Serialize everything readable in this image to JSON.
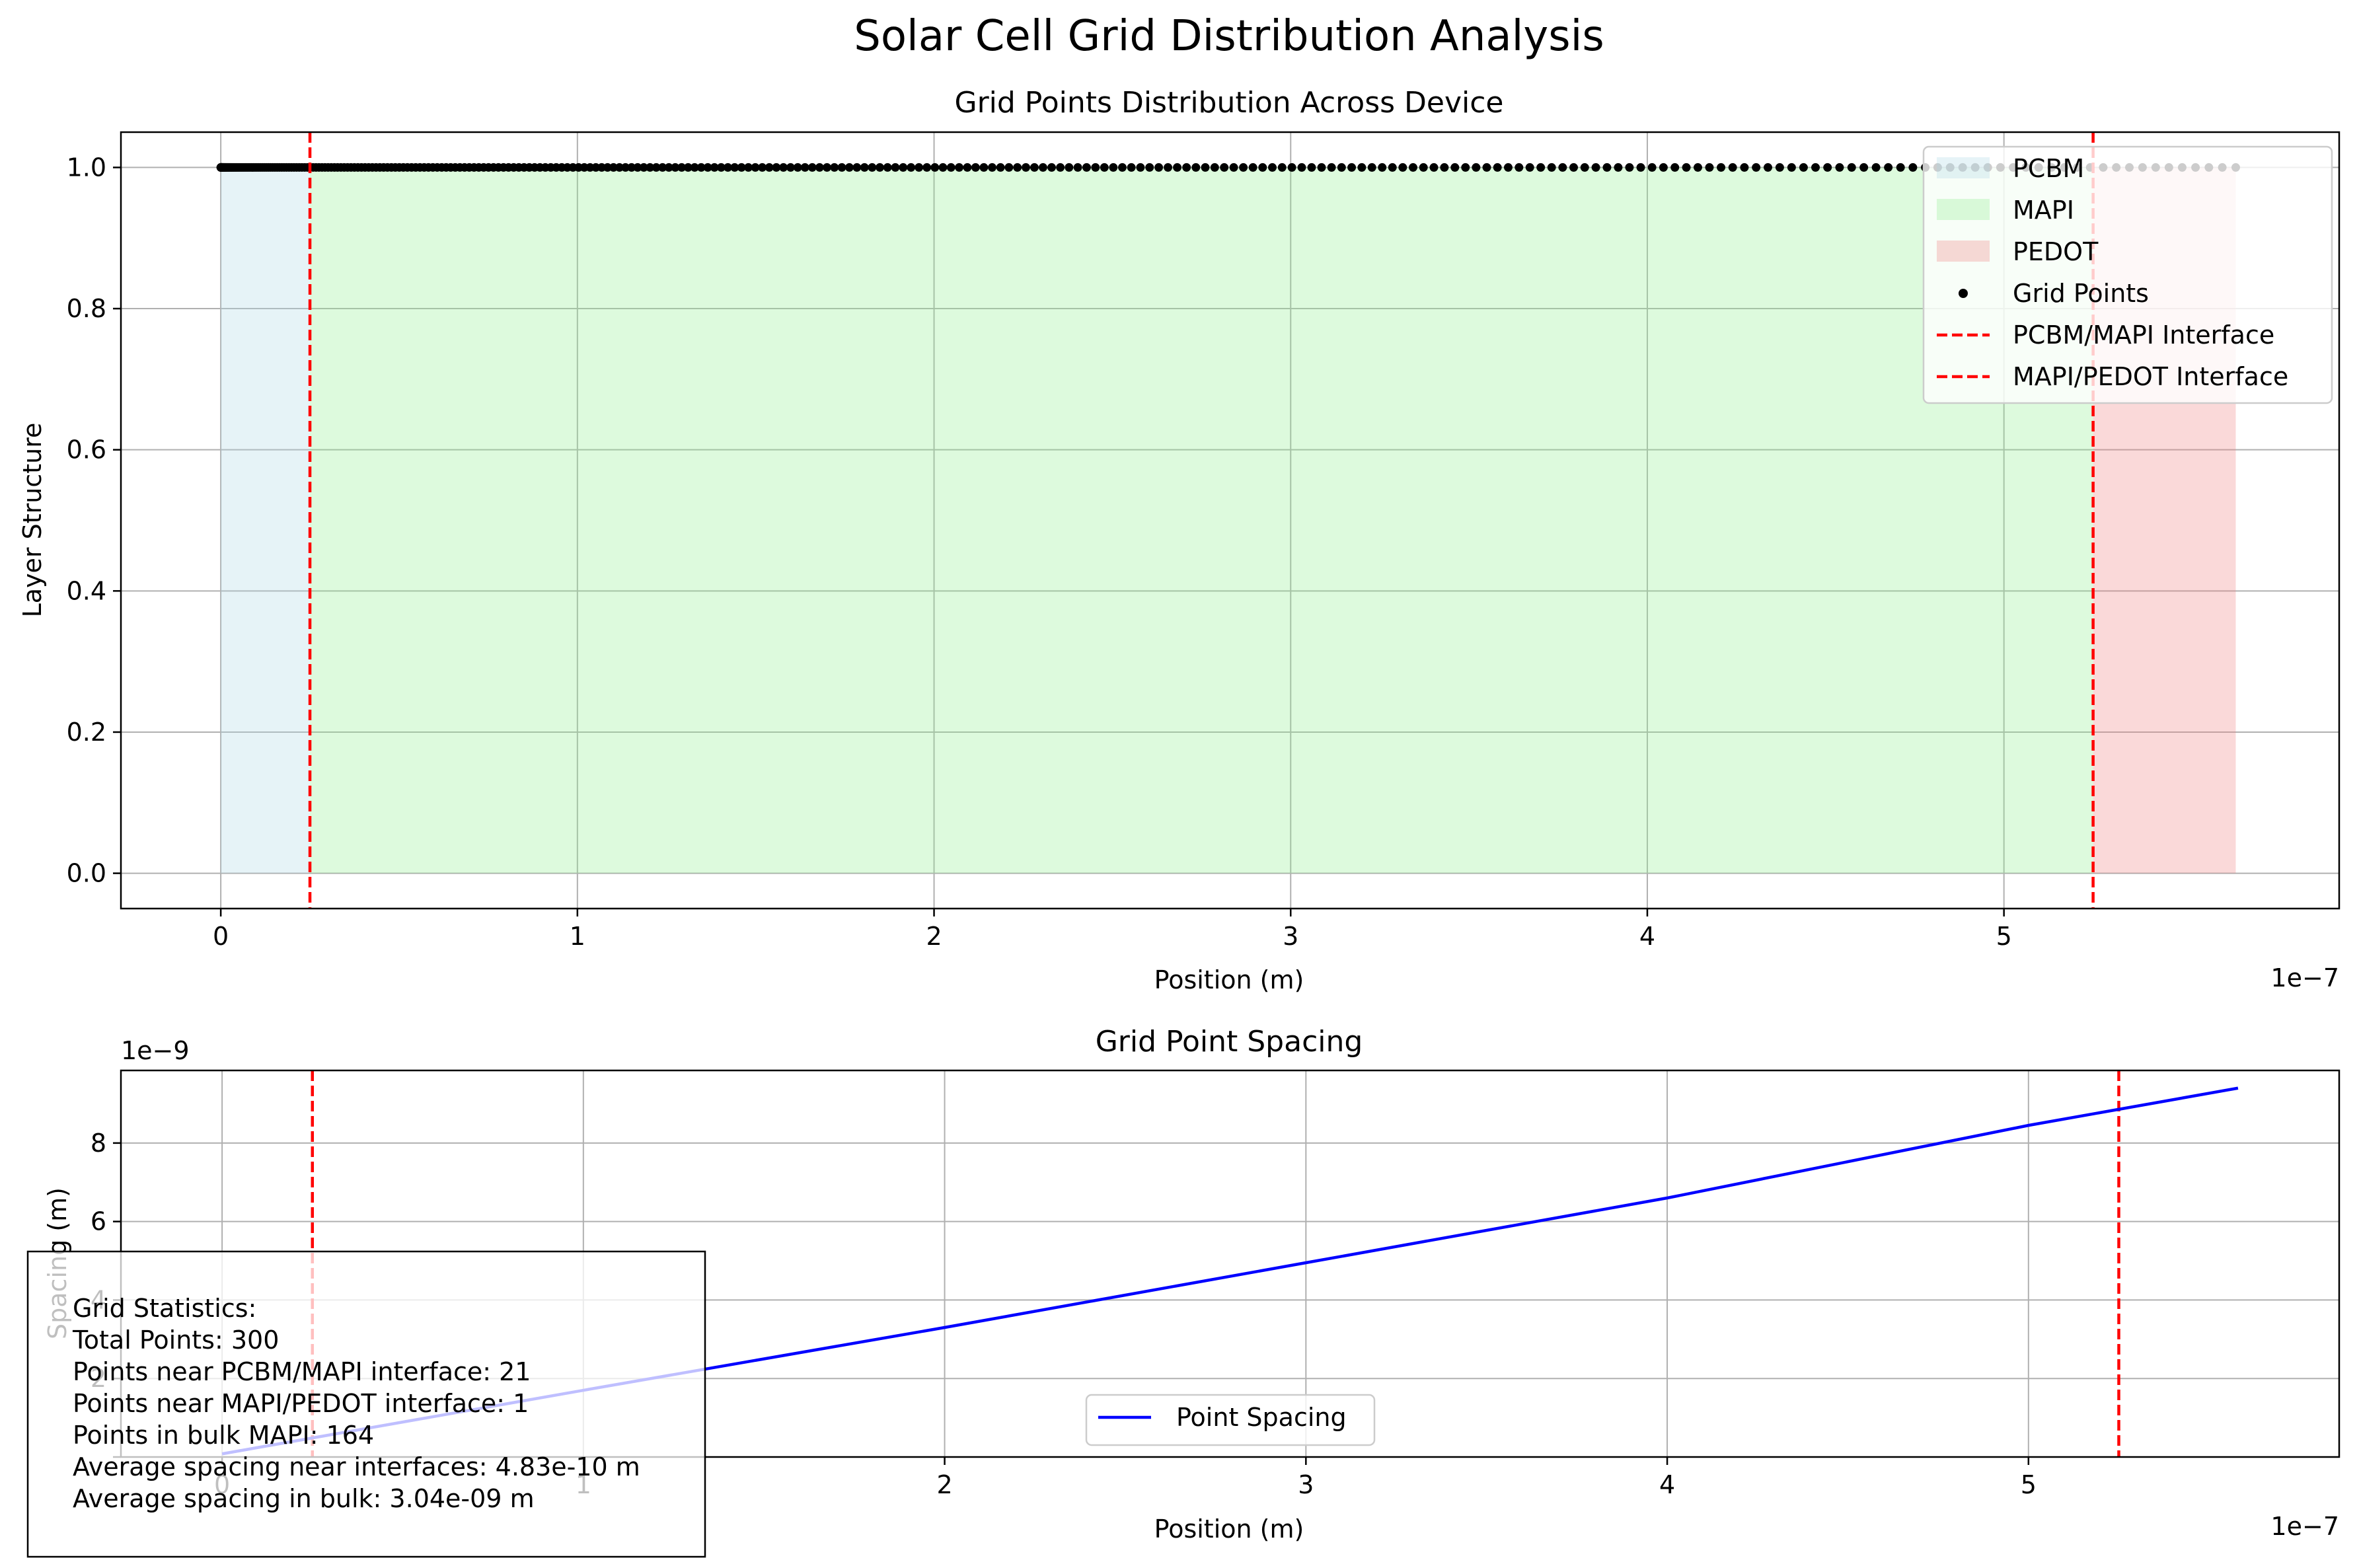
{
  "figure_title": "Solar Cell Grid Distribution Analysis",
  "chart_data": [
    {
      "type": "scatter",
      "title": "Grid Points Distribution Across Device",
      "xlabel": "Position (m)",
      "ylabel": "Layer Structure",
      "x_offset_text": "1e−7",
      "xlim": [
        -0.28,
        5.94
      ],
      "ylim": [
        -0.05,
        1.05
      ],
      "x_ticks": [
        0,
        1,
        2,
        3,
        4,
        5
      ],
      "x_tick_labels": [
        "0",
        "1",
        "2",
        "3",
        "4",
        "5"
      ],
      "y_ticks": [
        0.0,
        0.2,
        0.4,
        0.6,
        0.8,
        1.0
      ],
      "y_tick_labels": [
        "0.0",
        "0.2",
        "0.4",
        "0.6",
        "0.8",
        "1.0"
      ],
      "grid": true,
      "legend_position": "top-right",
      "regions": [
        {
          "name": "PCBM",
          "x_start": 0,
          "x_end": 0.25,
          "y_top": 1.0,
          "color": "#add8e6"
        },
        {
          "name": "MAPI",
          "x_start": 0.25,
          "x_end": 5.25,
          "y_top": 1.0,
          "color": "#90ee90"
        },
        {
          "name": "PEDOT",
          "x_start": 5.25,
          "x_end": 5.65,
          "y_top": 1.0,
          "color": "#f08080"
        }
      ],
      "grid_points": {
        "name": "Grid Points",
        "y": 1.0,
        "count": 300,
        "x_start": 0,
        "x_end": 5.65,
        "color": "#000000"
      },
      "interfaces": [
        {
          "name": "PCBM/MAPI Interface",
          "x": 0.25,
          "color": "#ff0000"
        },
        {
          "name": "MAPI/PEDOT Interface",
          "x": 5.25,
          "color": "#ff0000"
        }
      ]
    },
    {
      "type": "line",
      "title": "Grid Point Spacing",
      "xlabel": "Position (m)",
      "ylabel": "Spacing (m)",
      "x_offset_text": "1e−7",
      "y_offset_text": "1e−9",
      "xlim": [
        -0.28,
        5.86
      ],
      "ylim": [
        0.0,
        9.85
      ],
      "x_ticks": [
        0,
        1,
        2,
        3,
        4,
        5
      ],
      "x_tick_labels": [
        "0",
        "1",
        "2",
        "3",
        "4",
        "5"
      ],
      "y_ticks": [
        0.0,
        2.0,
        4.0,
        6.0,
        8.0
      ],
      "y_tick_labels": [
        "",
        "2",
        "4",
        "6",
        "8"
      ],
      "grid": true,
      "legend_position": "lower-center",
      "series": [
        {
          "name": "Point Spacing",
          "color": "#0000ff",
          "x": [
            0.0,
            1.0,
            2.0,
            3.0,
            4.0,
            5.0,
            5.58
          ],
          "y": [
            0.08,
            1.7,
            3.3,
            4.95,
            6.6,
            8.45,
            9.4
          ]
        }
      ],
      "interfaces": [
        {
          "x": 0.25,
          "color": "#ff0000"
        },
        {
          "x": 5.25,
          "color": "#ff0000"
        }
      ]
    }
  ],
  "stats_box": {
    "lines": [
      "Grid Statistics:",
      "Total Points: 300",
      "Points near PCBM/MAPI interface: 21",
      "Points near MAPI/PEDOT interface: 1",
      "Points in bulk MAPI: 164",
      "Average spacing near interfaces: 4.83e-10 m",
      "Average spacing in bulk: 3.04e-09 m"
    ]
  }
}
